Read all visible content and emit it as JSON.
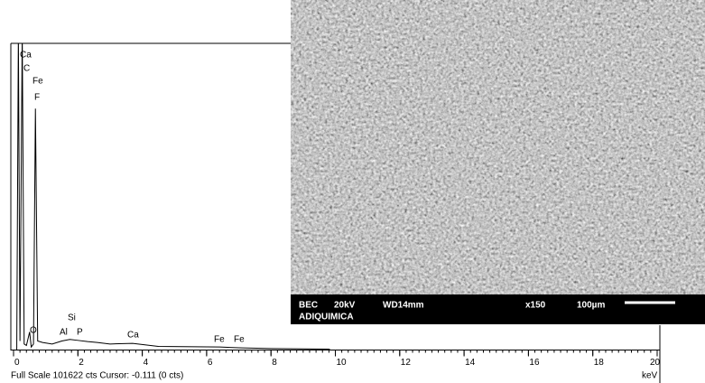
{
  "chart_data": {
    "type": "line",
    "xlabel": "keV",
    "footer": "Full Scale 101622 cts Cursor: -0.111  (0 cts)",
    "annotations": [
      "Ca",
      "C",
      "Fe",
      "F",
      "O",
      "Si",
      "Al",
      "P",
      "Ca",
      "Fe",
      "Fe"
    ],
    "xlim": [
      0,
      20
    ],
    "xticks": [
      0,
      2,
      4,
      6,
      8,
      10,
      12,
      14,
      16,
      18,
      20
    ],
    "ylim": [
      0,
      101622
    ],
    "series": [
      {
        "color": "#000000",
        "x": [
          0,
          0.1,
          0.15,
          0.2,
          0.27,
          0.33,
          0.4,
          0.5,
          0.55,
          0.62,
          0.68,
          0.75,
          0.9,
          1.2,
          1.5,
          1.75,
          2.0,
          2.3,
          2.6,
          3.0,
          3.7,
          4.5,
          6.4,
          7.1,
          8.0,
          9.8,
          9.85
        ],
        "values": [
          0,
          0,
          105000,
          3000,
          105000,
          2000,
          1500,
          6000,
          1000,
          2000,
          80000,
          3000,
          2500,
          2000,
          3000,
          3500,
          3200,
          2800,
          2500,
          2000,
          2200,
          1200,
          1000,
          700,
          500,
          300,
          0
        ]
      }
    ]
  },
  "sem_image": {
    "line1": [
      "BEC",
      "20kV",
      "WD14mm",
      "x150",
      "100µm"
    ],
    "line2": "ADIQUIMICA"
  }
}
